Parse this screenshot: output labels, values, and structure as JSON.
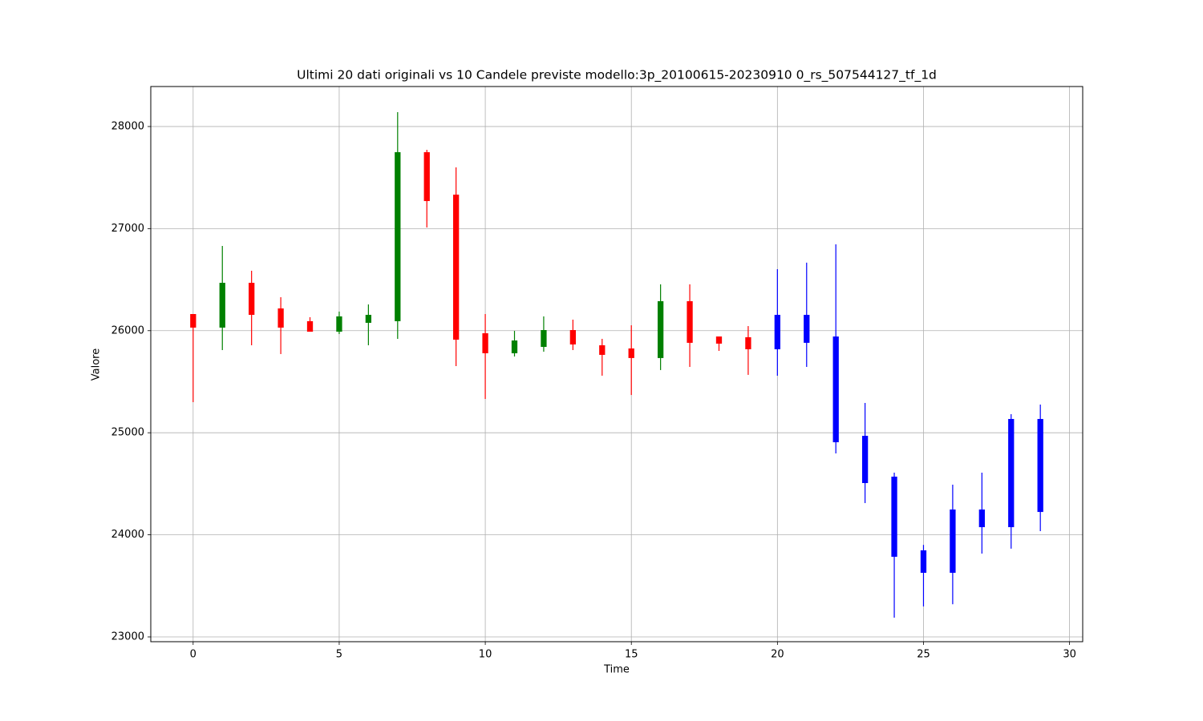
{
  "chart_data": {
    "type": "candlestick",
    "title": "Ultimi 20 dati originali vs 10 Candele previste modello:3p_20100615-20230910 0_rs_507544127_tf_1d",
    "x_label": "Time",
    "y_label": "Valore",
    "x": [
      0,
      1,
      2,
      3,
      4,
      5,
      6,
      7,
      8,
      9,
      10,
      11,
      12,
      13,
      14,
      15,
      16,
      17,
      18,
      19,
      20,
      21,
      22,
      23,
      24,
      25,
      26,
      27,
      28,
      29
    ],
    "open": [
      26163,
      26030,
      26469,
      26218,
      26093,
      25990,
      26077,
      26093,
      27749,
      27333,
      25975,
      25779,
      25841,
      26006,
      25857,
      25826,
      25732,
      26289,
      25943,
      25936,
      26155,
      26155,
      25943,
      24970,
      24570,
      23628,
      23628,
      24075,
      24075,
      25135
    ],
    "high": [
      26163,
      26830,
      26587,
      26328,
      26132,
      26187,
      26257,
      28141,
      27772,
      27600,
      26163,
      25998,
      26140,
      26108,
      25920,
      26053,
      26454,
      26454,
      25943,
      26045,
      26603,
      26666,
      26846,
      25292,
      24609,
      23901,
      24491,
      24609,
      25182,
      25276
    ],
    "low": [
      25300,
      25810,
      25857,
      25771,
      25990,
      25967,
      25857,
      25920,
      27011,
      25653,
      25331,
      25747,
      25794,
      25810,
      25559,
      25370,
      25614,
      25645,
      25802,
      25567,
      25559,
      25645,
      24797,
      24311,
      23188,
      23298,
      23320,
      23816,
      23864,
      24036
    ],
    "close": [
      26030,
      26469,
      26155,
      26030,
      25990,
      26140,
      26155,
      27749,
      27270,
      25912,
      25779,
      25904,
      26006,
      25865,
      25763,
      25732,
      26289,
      25881,
      25873,
      25818,
      25818,
      25881,
      24907,
      24507,
      23785,
      23848,
      24248,
      24248,
      25135,
      24224
    ],
    "colors": [
      "red",
      "green",
      "red",
      "red",
      "red",
      "green",
      "green",
      "green",
      "red",
      "red",
      "red",
      "green",
      "green",
      "red",
      "red",
      "red",
      "green",
      "red",
      "red",
      "red",
      "blue",
      "blue",
      "blue",
      "blue",
      "blue",
      "blue",
      "blue",
      "blue",
      "blue",
      "blue"
    ],
    "xlim": [
      -1.45,
      30.45
    ],
    "ylim": [
      22953,
      28392
    ],
    "xticks": [
      0,
      5,
      10,
      15,
      20,
      25,
      30
    ],
    "yticks": [
      23000,
      24000,
      25000,
      26000,
      27000,
      28000
    ],
    "grid": true
  }
}
